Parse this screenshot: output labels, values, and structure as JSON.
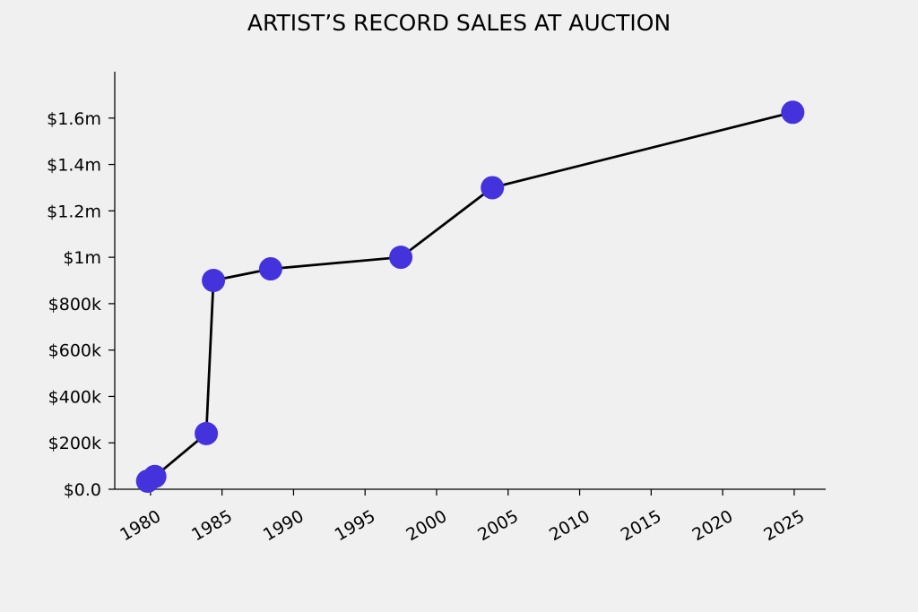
{
  "chart_data": {
    "type": "line",
    "title": "ARTIST’S RECORD SALES AT AUCTION",
    "xlabel": "",
    "ylabel": "",
    "xlim": [
      1977.5,
      2027.2
    ],
    "ylim": [
      0,
      1800000
    ],
    "grid": false,
    "x_ticks": [
      1980,
      1985,
      1990,
      1995,
      2000,
      2005,
      2010,
      2015,
      2020,
      2025
    ],
    "y_ticks": [
      {
        "value": 0,
        "label": "$0.0"
      },
      {
        "value": 200000,
        "label": "$200k"
      },
      {
        "value": 400000,
        "label": "$400k"
      },
      {
        "value": 600000,
        "label": "$600k"
      },
      {
        "value": 800000,
        "label": "$800k"
      },
      {
        "value": 1000000,
        "label": "$1m"
      },
      {
        "value": 1200000,
        "label": "$1.2m"
      },
      {
        "value": 1400000,
        "label": "$1.4m"
      },
      {
        "value": 1600000,
        "label": "$1.6m"
      }
    ],
    "series": [
      {
        "color": "#4433dd",
        "line_color": "#000000",
        "points": [
          {
            "x": 1979.8,
            "y": 35000
          },
          {
            "x": 1980.3,
            "y": 55000
          },
          {
            "x": 1983.9,
            "y": 240000
          },
          {
            "x": 1984.4,
            "y": 900000
          },
          {
            "x": 1988.4,
            "y": 950000
          },
          {
            "x": 1997.5,
            "y": 1000000
          },
          {
            "x": 2003.9,
            "y": 1300000
          },
          {
            "x": 2024.9,
            "y": 1625000
          }
        ]
      }
    ]
  }
}
